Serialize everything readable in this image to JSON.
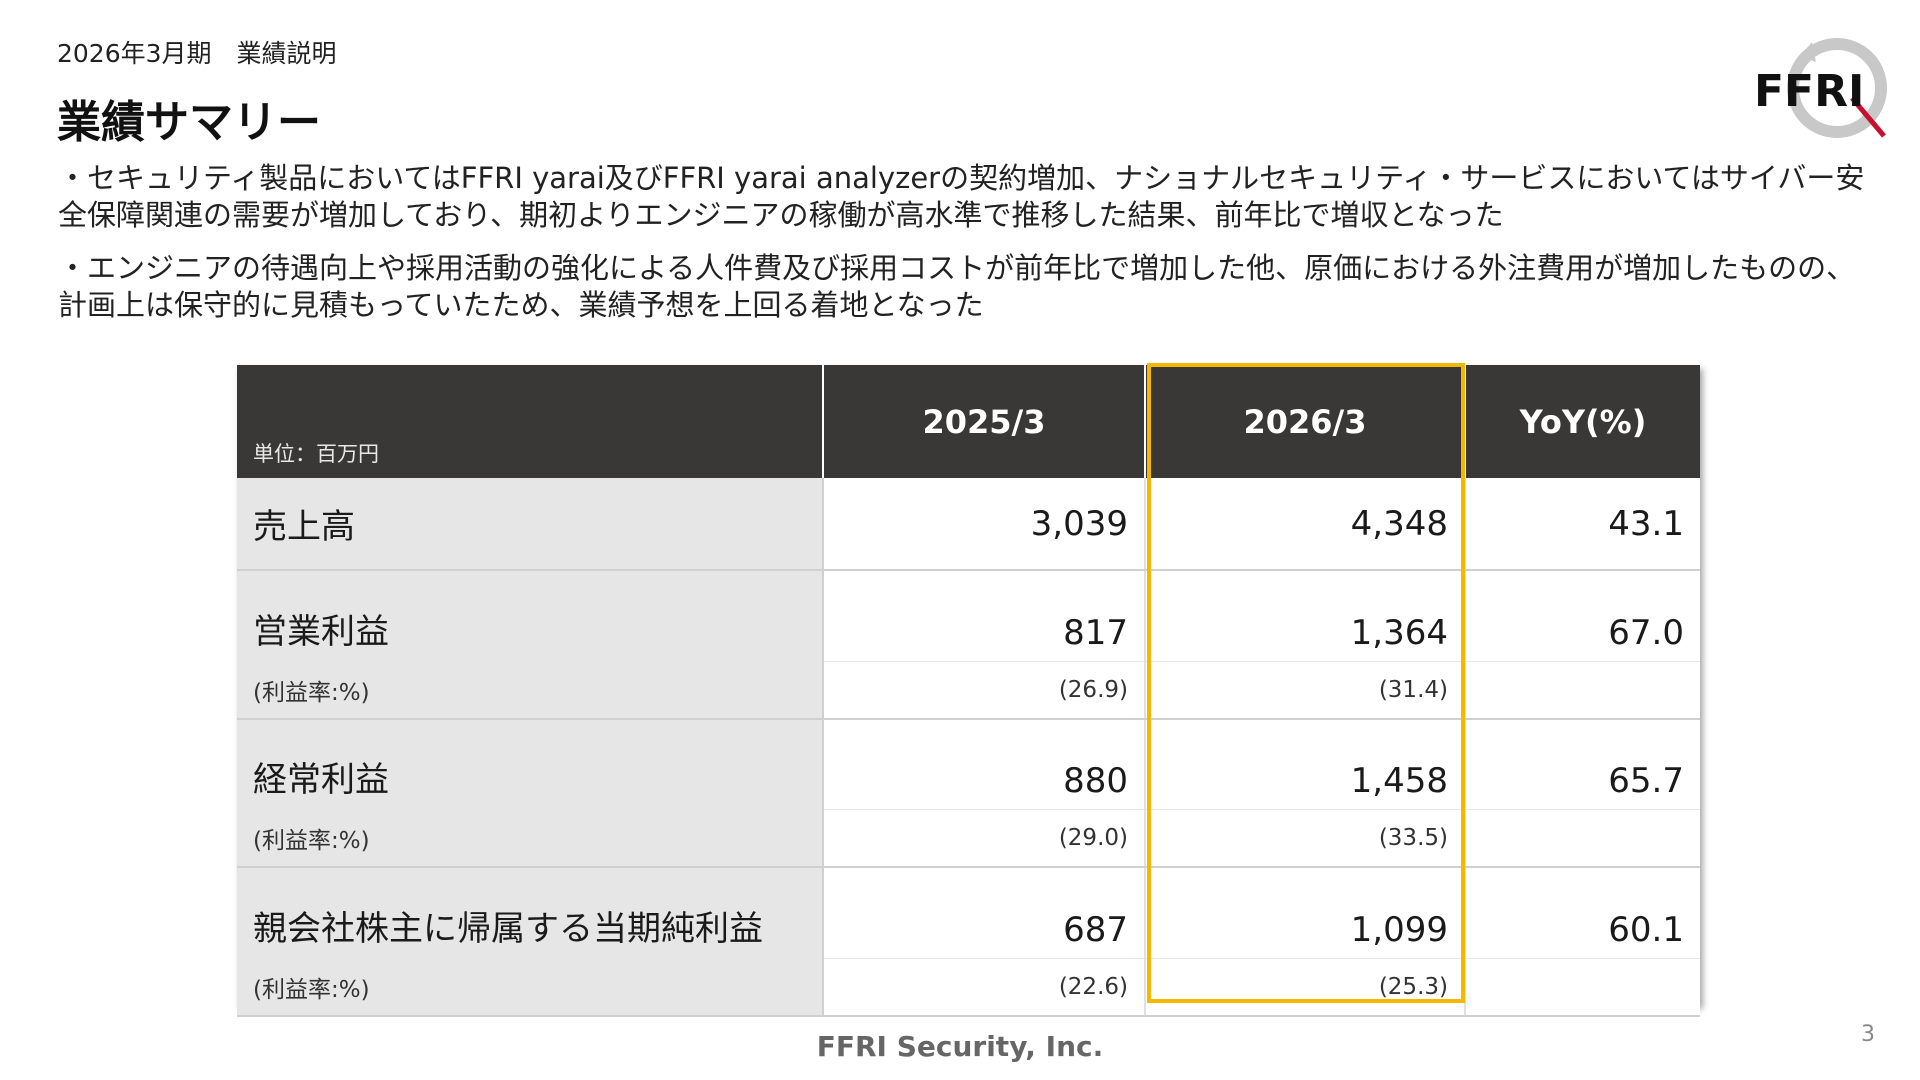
{
  "header": {
    "subtitle": "2026年3月期　業績説明",
    "title": "業績サマリー"
  },
  "logo": {
    "text": "FFRI",
    "icon": "ffri-logo-icon"
  },
  "bullets": [
    "・セキュリティ製品においてはFFRI yarai及びFFRI yarai analyzerの契約増加、ナショナルセキュリティ・サービスにおいてはサイバー安全保障関連の需要が増加しており、期初よりエンジニアの稼働が高水準で推移した結果、前年比で増収となった",
    "・エンジニアの待遇向上や採用活動の強化による人件費及び採用コストが前年比で増加した他、原価における外注費用が増加したものの、計画上は保守的に見積もっていたため、業績予想を上回る着地となった"
  ],
  "table": {
    "unit": "単位：百万円",
    "columns": [
      "2025/3",
      "2026/3",
      "YoY(%)"
    ],
    "rows": [
      {
        "label": "売上高",
        "v2025": "3,039",
        "v2026": "4,348",
        "yoy": "43.1"
      },
      {
        "label": "営業利益",
        "v2025": "817",
        "v2026": "1,364",
        "yoy": "67.0",
        "sub_label": "(利益率:%)",
        "sub2025": "(26.9)",
        "sub2026": "(31.4)"
      },
      {
        "label": "経常利益",
        "v2025": "880",
        "v2026": "1,458",
        "yoy": "65.7",
        "sub_label": "(利益率:%)",
        "sub2025": "(29.0)",
        "sub2026": "(33.5)"
      },
      {
        "label": "親会社株主に帰属する当期純利益",
        "v2025": "687",
        "v2026": "1,099",
        "yoy": "60.1",
        "sub_label": "(利益率:%)",
        "sub2025": "(22.6)",
        "sub2026": "(25.3)"
      }
    ],
    "highlight_color": "#f5b800",
    "header_bg": "#3a3836"
  },
  "footer": {
    "company": "FFRI Security, Inc.",
    "page": "3"
  }
}
